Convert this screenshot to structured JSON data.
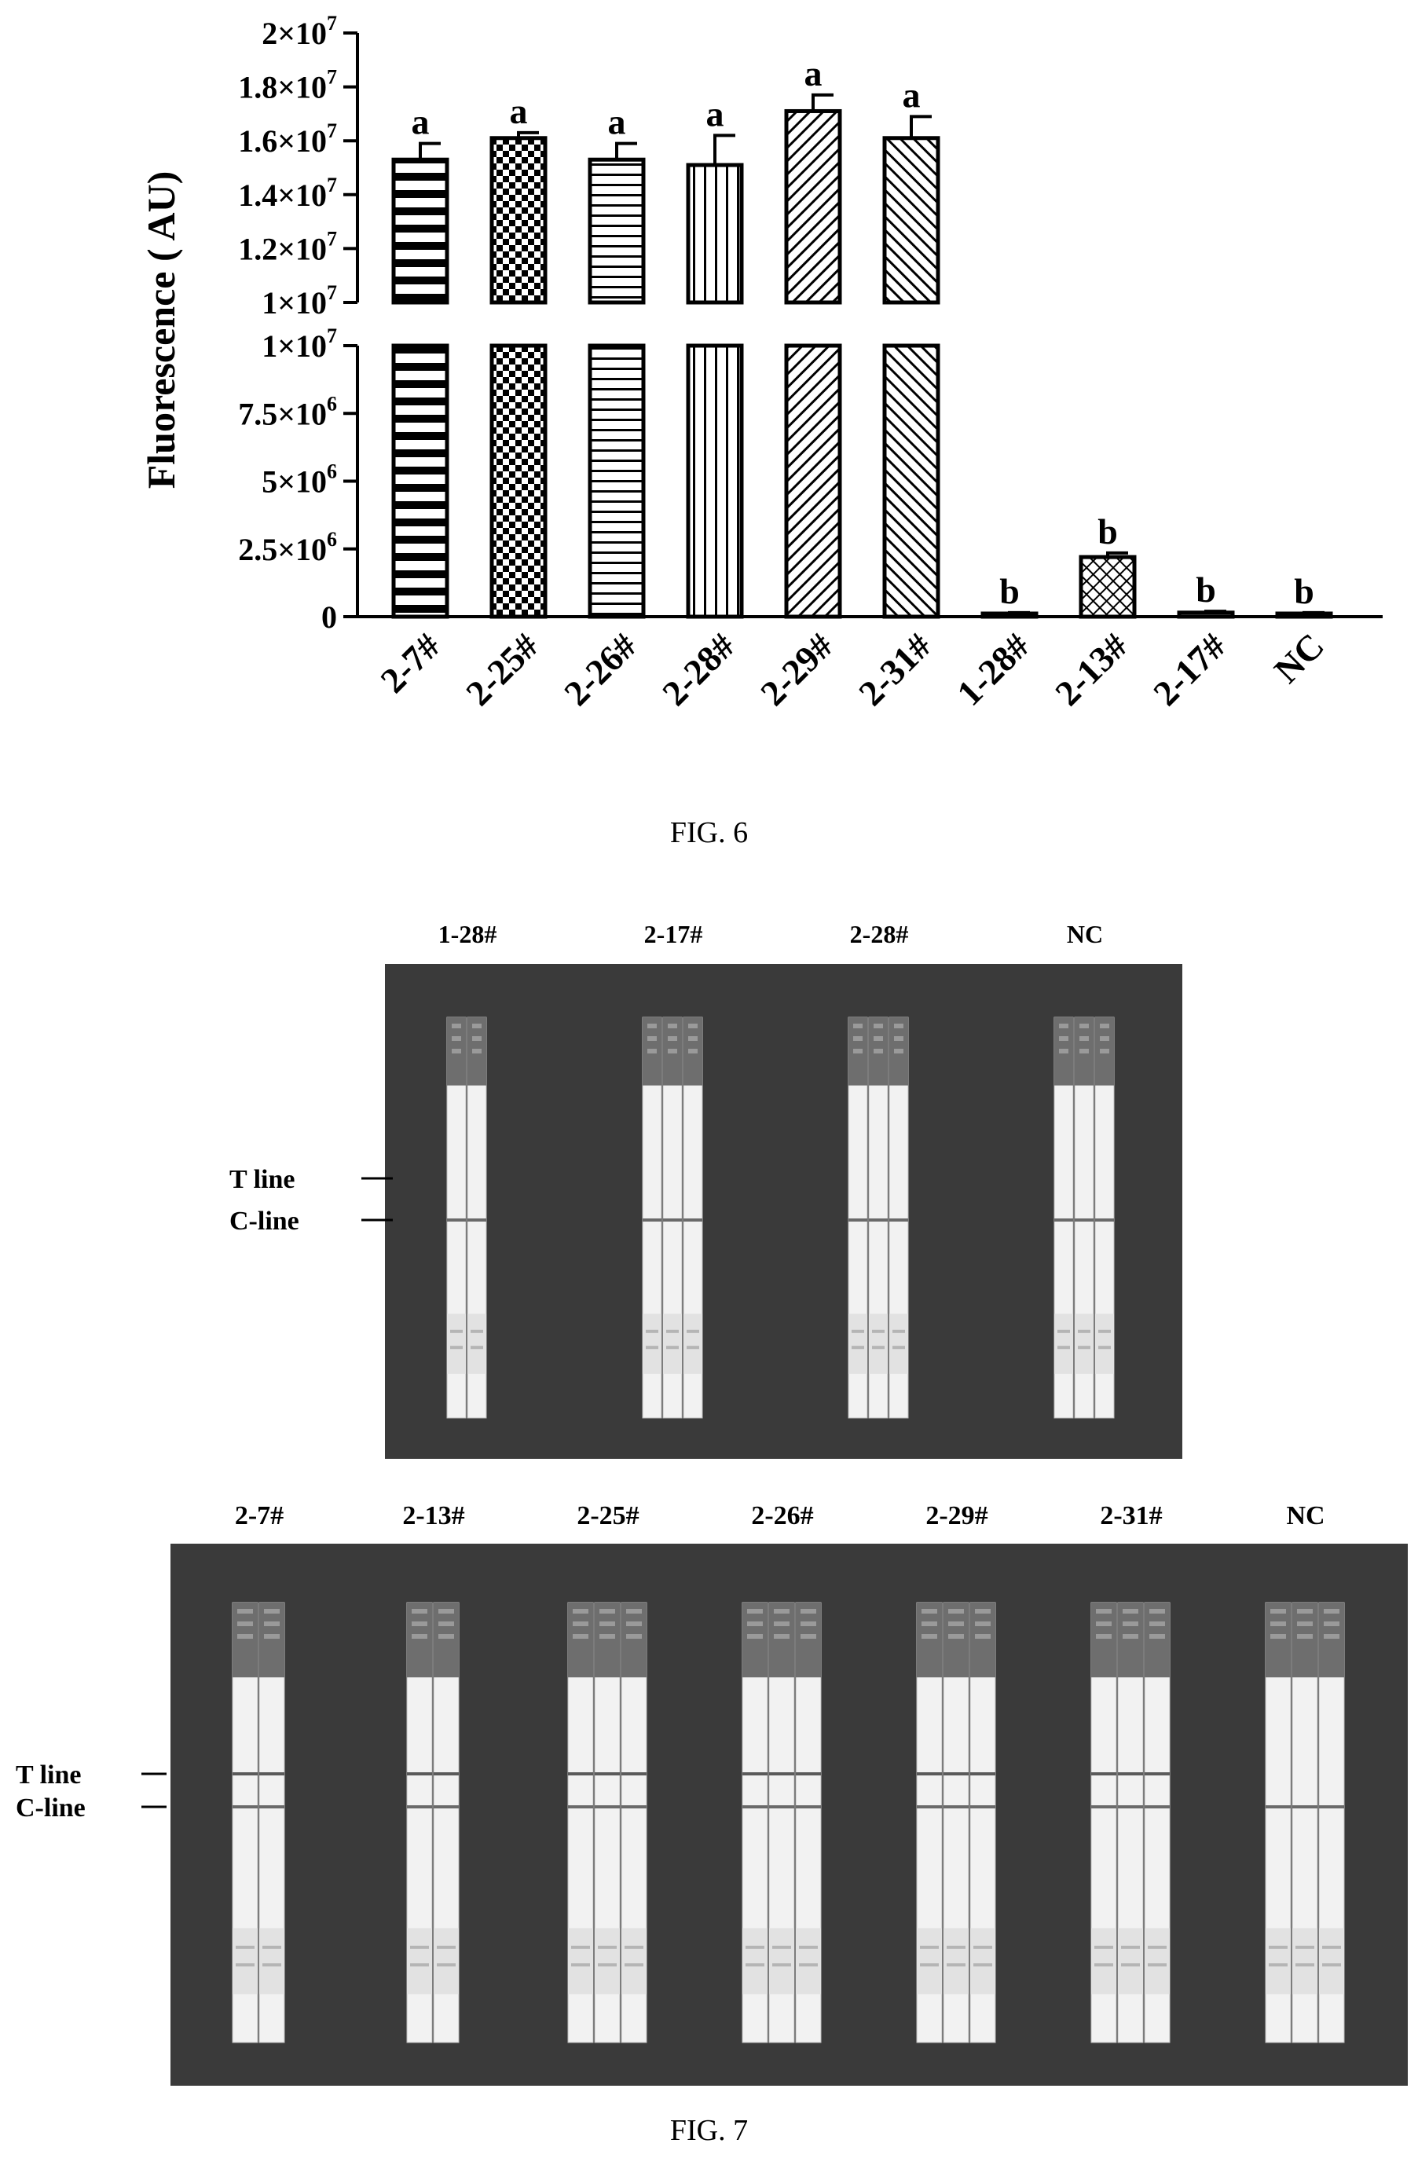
{
  "figure6": {
    "caption": "FIG. 6",
    "chart_data": {
      "type": "bar",
      "ylabel": "Fluorescence ( AU)",
      "xlabel": "",
      "broken_axis": true,
      "ylim_lower": [
        0,
        10000000
      ],
      "ylim_upper": [
        10000000,
        20000000
      ],
      "ticks_lower": [
        {
          "value": 0,
          "label": "0"
        },
        {
          "value": 2500000,
          "label": "2.5×10",
          "exp": "6"
        },
        {
          "value": 5000000,
          "label": "5×10",
          "exp": "6"
        },
        {
          "value": 7500000,
          "label": "7.5×10",
          "exp": "6"
        },
        {
          "value": 10000000,
          "label": "1×10",
          "exp": "7"
        }
      ],
      "ticks_upper": [
        {
          "value": 10000000,
          "label": "1×10",
          "exp": "7"
        },
        {
          "value": 12000000,
          "label": "1.2×10",
          "exp": "7"
        },
        {
          "value": 14000000,
          "label": "1.4×10",
          "exp": "7"
        },
        {
          "value": 16000000,
          "label": "1.6×10",
          "exp": "7"
        },
        {
          "value": 18000000,
          "label": "1.8×10",
          "exp": "7"
        },
        {
          "value": 20000000,
          "label": "2×10",
          "exp": "7"
        }
      ],
      "categories": [
        "2-7#",
        "2-25#",
        "2-26#",
        "2-28#",
        "2-29#",
        "2-31#",
        "1-28#",
        "2-13#",
        "2-17#",
        "NC"
      ],
      "values": [
        15300000,
        16100000,
        15300000,
        15100000,
        17100000,
        16100000,
        100000,
        2200000,
        150000,
        100000
      ],
      "errors": [
        600000,
        200000,
        600000,
        1100000,
        600000,
        800000,
        50000,
        150000,
        50000,
        50000
      ],
      "significance": [
        "a",
        "a",
        "a",
        "a",
        "a",
        "a",
        "b",
        "b",
        "b",
        "b"
      ],
      "patterns": [
        "h-stripes",
        "checker",
        "h-lines",
        "v-lines",
        "diag-right",
        "diag-left",
        "none",
        "crosshatch",
        "none",
        "none"
      ],
      "grid": false,
      "legend": "none"
    }
  },
  "figure7": {
    "caption": "FIG. 7",
    "panel_top": {
      "labels": [
        "1-28#",
        "2-17#",
        "2-28#",
        "NC"
      ],
      "strips_per_group": [
        2,
        3,
        3,
        3
      ],
      "has_t_line": [
        false,
        false,
        false,
        false
      ]
    },
    "panel_bottom": {
      "labels": [
        "2-7#",
        "2-13#",
        "2-25#",
        "2-26#",
        "2-29#",
        "2-31#",
        "NC"
      ],
      "strips_per_group": [
        2,
        2,
        3,
        3,
        3,
        3,
        3
      ],
      "has_t_line": [
        true,
        true,
        true,
        true,
        true,
        true,
        false
      ]
    },
    "t_line_label": "T line",
    "c_line_label": "C-line"
  },
  "colors": {
    "ink": "#000000",
    "photo_bg": "#3a3a3a",
    "strip_white": "#f2f2f2",
    "strip_header": "#6e6e6e"
  }
}
